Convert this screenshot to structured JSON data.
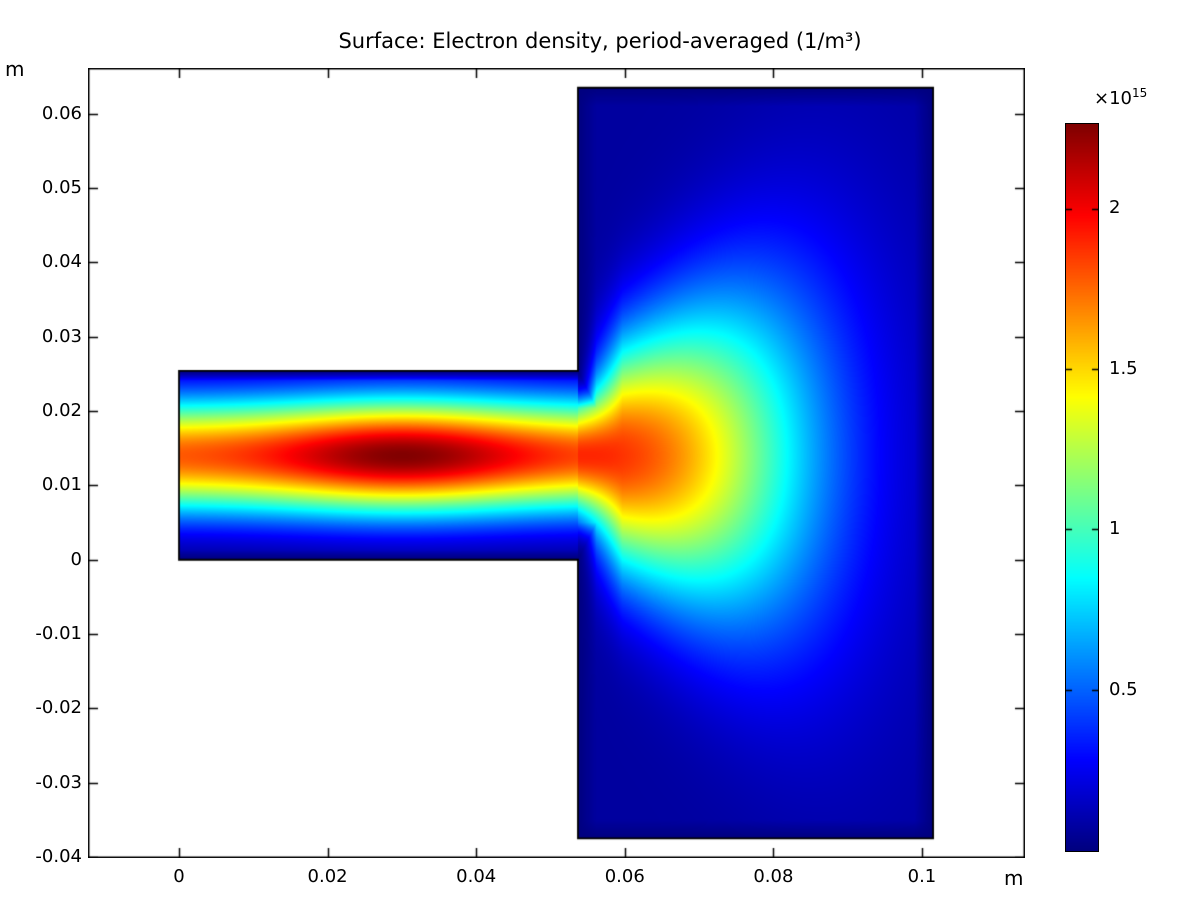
{
  "title": {
    "text": "Surface: Electron density, period-averaged (1/m³)"
  },
  "axes": {
    "x_unit": "m",
    "y_unit": "m",
    "x_ticks": [
      {
        "value": 0,
        "label": "0"
      },
      {
        "value": 0.02,
        "label": "0.02"
      },
      {
        "value": 0.04,
        "label": "0.04"
      },
      {
        "value": 0.06,
        "label": "0.06"
      },
      {
        "value": 0.08,
        "label": "0.08"
      },
      {
        "value": 0.1,
        "label": "0.1"
      }
    ],
    "y_ticks": [
      {
        "value": 0.06,
        "label": "0.06"
      },
      {
        "value": 0.05,
        "label": "0.05"
      },
      {
        "value": 0.04,
        "label": "0.04"
      },
      {
        "value": 0.03,
        "label": "0.03"
      },
      {
        "value": 0.02,
        "label": "0.02"
      },
      {
        "value": 0.01,
        "label": "0.01"
      },
      {
        "value": 0,
        "label": "0"
      },
      {
        "value": -0.01,
        "label": "-0.01"
      },
      {
        "value": -0.02,
        "label": "-0.02"
      },
      {
        "value": -0.03,
        "label": "-0.03"
      },
      {
        "value": -0.04,
        "label": "-0.04"
      }
    ]
  },
  "colorbar": {
    "multiplier_base": "×10",
    "multiplier_exp": "15",
    "ticks": [
      {
        "value": 0.5,
        "label": "0.5"
      },
      {
        "value": 1,
        "label": "1"
      },
      {
        "value": 1.5,
        "label": "1.5"
      },
      {
        "value": 2,
        "label": "2"
      }
    ],
    "vmin": 0,
    "vmax": 2.265,
    "colormap": "rainbow-jet",
    "bottom_color": "#000080",
    "top_color": "#800000"
  },
  "chart_data": {
    "type": "heatmap",
    "title": "Surface: Electron density, period-averaged (1/m³)",
    "xlabel": "m",
    "ylabel": "m",
    "x_range": [
      -0.01225,
      0.11387
    ],
    "y_range": [
      -0.04013,
      0.06616
    ],
    "grid": false,
    "legend_position": "right-colorbar",
    "colorbar_range_1e15": [
      0,
      2.265
    ],
    "geometry": {
      "channel": {
        "x": [
          0,
          0.0537
        ],
        "y": [
          0,
          0.0254
        ]
      },
      "chamber": {
        "x": [
          0.0537,
          0.1015
        ],
        "y": [
          -0.0375,
          0.0635
        ]
      }
    },
    "peak": {
      "value_1e15": 2.26,
      "x_m": 0.03,
      "y_m": 0.014
    },
    "centerline_profile": {
      "x_m": [
        0,
        0.01,
        0.02,
        0.03,
        0.04,
        0.05,
        0.06,
        0.07,
        0.08,
        0.09,
        0.1
      ],
      "value_1e15": [
        1.79,
        1.89,
        2.11,
        2.26,
        2.11,
        1.89,
        1.79,
        1.47,
        0.89,
        0.43,
        0.16
      ]
    },
    "field": {
      "vmax": 2.265,
      "channel": {
        "center_y": 0.014,
        "sigma": 0.0078,
        "wall_ramp": 0.0013,
        "peak": 2.26,
        "axial_base": 0.78,
        "axial_amp": 0.22,
        "axial_peak_x": 0.03,
        "axial_width": 0.017
      },
      "plume": {
        "exit_value": 1.83,
        "exit_sigma": 0.0078,
        "axial_width": 0.03,
        "axial_power": 2.5,
        "spread0": 0.012,
        "spread_growth": 0.55,
        "vertical_power": 2.0,
        "wall_ramp": 0.0025,
        "mouth_ramp": 0.005,
        "blend_width": 0.006,
        "background": 0.07
      }
    }
  }
}
